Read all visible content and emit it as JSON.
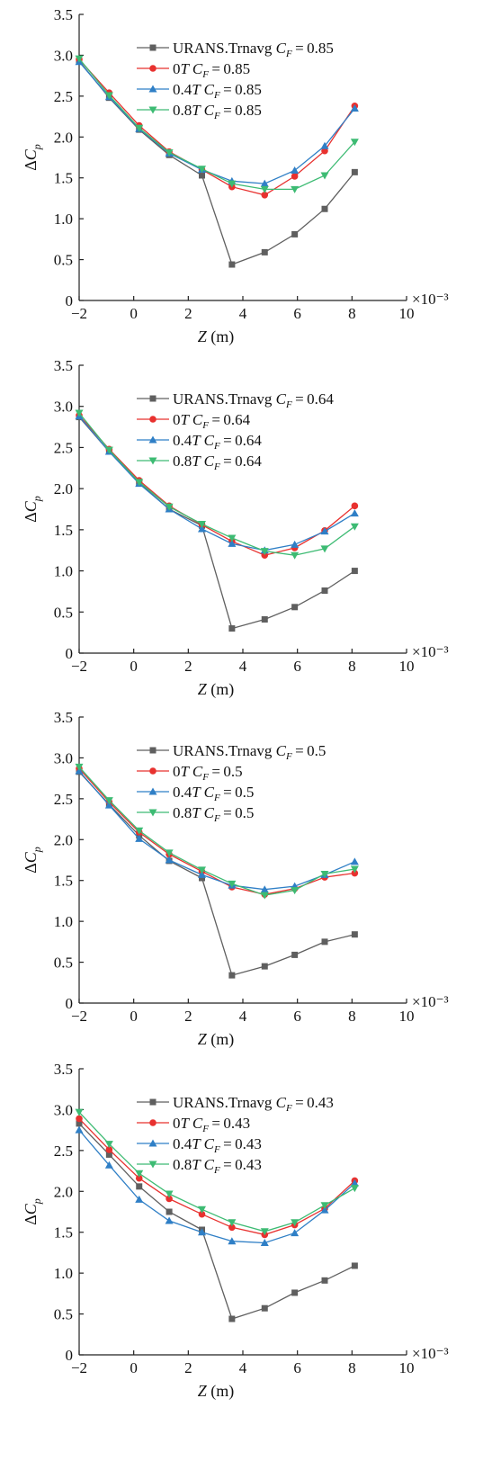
{
  "colors": {
    "URANS.Trnavg": "#5f5f5f",
    "0T": "#e8312f",
    "0.4T": "#2f7fc6",
    "0.8T": "#3dbb73",
    "axis": "#222222"
  },
  "chart_data": [
    {
      "type": "line",
      "xlabel": "Z (m)",
      "ylabel": "ΔCp",
      "x_multiplier": "×10⁻³",
      "xlim": [
        -2,
        10
      ],
      "ylim": [
        0,
        3.5
      ],
      "x_ticks": [
        -2,
        0,
        2,
        4,
        6,
        8,
        10
      ],
      "y_ticks": [
        "0",
        "0.5",
        "1.0",
        "1.5",
        "2.0",
        "2.5",
        "3.0",
        "3.5"
      ],
      "legend_position": "top-center",
      "x": [
        -2,
        -0.9,
        0.2,
        1.3,
        2.5,
        3.6,
        4.8,
        5.9,
        7.0,
        8.1
      ],
      "series": [
        {
          "name": "URANS.Trnavg",
          "cf": "0.85",
          "marker": "square",
          "values": [
            2.93,
            2.48,
            2.09,
            1.78,
            1.53,
            0.44,
            0.59,
            0.81,
            1.12,
            1.57
          ]
        },
        {
          "name": "0T",
          "cf": "0.85",
          "marker": "circle",
          "values": [
            2.95,
            2.54,
            2.14,
            1.82,
            1.6,
            1.39,
            1.29,
            1.52,
            1.83,
            2.38
          ]
        },
        {
          "name": "0.4T",
          "cf": "0.85",
          "marker": "triangle-up",
          "values": [
            2.92,
            2.49,
            2.1,
            1.8,
            1.6,
            1.46,
            1.43,
            1.59,
            1.89,
            2.35
          ]
        },
        {
          "name": "0.8T",
          "cf": "0.85",
          "marker": "triangle-down",
          "values": [
            2.96,
            2.51,
            2.11,
            1.81,
            1.61,
            1.43,
            1.36,
            1.36,
            1.53,
            1.94
          ]
        }
      ]
    },
    {
      "type": "line",
      "xlabel": "Z (m)",
      "ylabel": "ΔCp",
      "x_multiplier": "×10⁻³",
      "xlim": [
        -2,
        10
      ],
      "ylim": [
        0,
        3.5
      ],
      "x_ticks": [
        -2,
        0,
        2,
        4,
        6,
        8,
        10
      ],
      "y_ticks": [
        "0",
        "0.5",
        "1.0",
        "1.5",
        "2.0",
        "2.5",
        "3.0",
        "3.5"
      ],
      "legend_position": "top-center",
      "x": [
        -2,
        -0.9,
        0.2,
        1.3,
        2.5,
        3.6,
        4.8,
        5.9,
        7.0,
        8.1
      ],
      "series": [
        {
          "name": "URANS.Trnavg",
          "cf": "0.64",
          "marker": "square",
          "values": [
            2.87,
            2.45,
            2.07,
            1.75,
            1.55,
            0.3,
            0.41,
            0.56,
            0.76,
            1.0
          ]
        },
        {
          "name": "0T",
          "cf": "0.64",
          "marker": "circle",
          "values": [
            2.89,
            2.48,
            2.1,
            1.79,
            1.56,
            1.36,
            1.19,
            1.28,
            1.49,
            1.79
          ]
        },
        {
          "name": "0.4T",
          "cf": "0.64",
          "marker": "triangle-up",
          "values": [
            2.88,
            2.45,
            2.06,
            1.75,
            1.51,
            1.33,
            1.25,
            1.32,
            1.48,
            1.7
          ]
        },
        {
          "name": "0.8T",
          "cf": "0.64",
          "marker": "triangle-down",
          "values": [
            2.92,
            2.47,
            2.08,
            1.78,
            1.57,
            1.4,
            1.24,
            1.19,
            1.27,
            1.54
          ]
        }
      ]
    },
    {
      "type": "line",
      "xlabel": "Z (m)",
      "ylabel": "ΔCp",
      "x_multiplier": "×10⁻³",
      "xlim": [
        -2,
        10
      ],
      "ylim": [
        0,
        3.5
      ],
      "x_ticks": [
        -2,
        0,
        2,
        4,
        6,
        8,
        10
      ],
      "y_ticks": [
        "0",
        "0.5",
        "1.0",
        "1.5",
        "2.0",
        "2.5",
        "3.0",
        "3.5"
      ],
      "legend_position": "top-center",
      "x": [
        -2,
        -0.9,
        0.2,
        1.3,
        2.5,
        3.6,
        4.8,
        5.9,
        7.0,
        8.1
      ],
      "series": [
        {
          "name": "URANS.Trnavg",
          "cf": "0.5",
          "marker": "square",
          "values": [
            2.83,
            2.43,
            2.05,
            1.74,
            1.53,
            0.34,
            0.45,
            0.59,
            0.75,
            0.84
          ]
        },
        {
          "name": "0T",
          "cf": "0.5",
          "marker": "circle",
          "values": [
            2.87,
            2.46,
            2.09,
            1.82,
            1.61,
            1.42,
            1.33,
            1.4,
            1.54,
            1.59
          ]
        },
        {
          "name": "0.4T",
          "cf": "0.5",
          "marker": "triangle-up",
          "values": [
            2.84,
            2.42,
            2.01,
            1.75,
            1.57,
            1.44,
            1.39,
            1.43,
            1.57,
            1.73
          ]
        },
        {
          "name": "0.8T",
          "cf": "0.5",
          "marker": "triangle-down",
          "values": [
            2.89,
            2.48,
            2.11,
            1.84,
            1.63,
            1.46,
            1.32,
            1.38,
            1.58,
            1.64
          ]
        }
      ]
    },
    {
      "type": "line",
      "xlabel": "Z (m)",
      "ylabel": "ΔCp",
      "x_multiplier": "×10⁻³",
      "xlim": [
        -2,
        10
      ],
      "ylim": [
        0,
        3.5
      ],
      "x_ticks": [
        -2,
        0,
        2,
        4,
        6,
        8,
        10
      ],
      "y_ticks": [
        "0",
        "0.5",
        "1.0",
        "1.5",
        "2.0",
        "2.5",
        "3.0",
        "3.5"
      ],
      "legend_position": "top-center",
      "x": [
        -2,
        -0.9,
        0.2,
        1.3,
        2.5,
        3.6,
        4.8,
        5.9,
        7.0,
        8.1
      ],
      "series": [
        {
          "name": "URANS.Trnavg",
          "cf": "0.43",
          "marker": "square",
          "values": [
            2.83,
            2.45,
            2.06,
            1.75,
            1.53,
            0.44,
            0.57,
            0.76,
            0.91,
            1.09
          ]
        },
        {
          "name": "0T",
          "cf": "0.43",
          "marker": "circle",
          "values": [
            2.89,
            2.51,
            2.16,
            1.91,
            1.72,
            1.56,
            1.47,
            1.59,
            1.79,
            2.13
          ]
        },
        {
          "name": "0.4T",
          "cf": "0.43",
          "marker": "triangle-up",
          "values": [
            2.75,
            2.32,
            1.9,
            1.64,
            1.5,
            1.39,
            1.37,
            1.49,
            1.77,
            2.1
          ]
        },
        {
          "name": "0.8T",
          "cf": "0.43",
          "marker": "triangle-down",
          "values": [
            2.97,
            2.58,
            2.22,
            1.97,
            1.78,
            1.62,
            1.51,
            1.62,
            1.83,
            2.04
          ]
        }
      ]
    }
  ]
}
